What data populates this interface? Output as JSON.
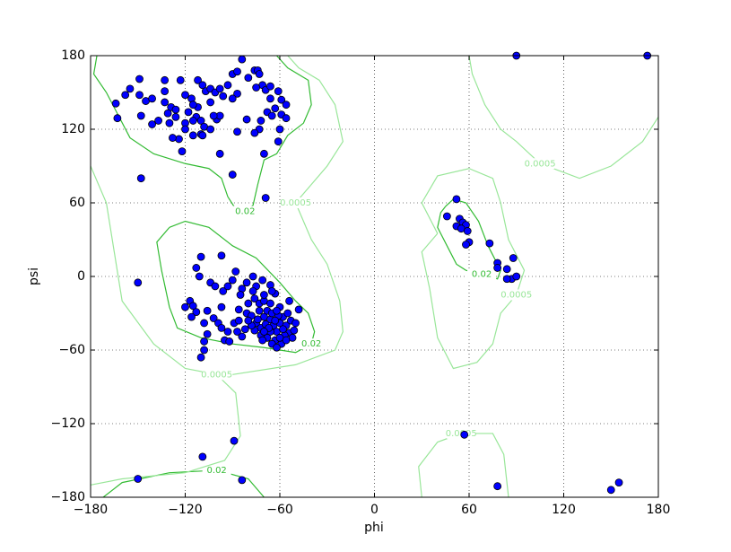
{
  "chart_data": {
    "type": "scatter",
    "x_label": "phi",
    "y_label": "psi",
    "xlim": [
      -180,
      180
    ],
    "ylim": [
      -180,
      180
    ],
    "xticks": [
      {
        "value": -180,
        "label": "−180"
      },
      {
        "value": -120,
        "label": "−120"
      },
      {
        "value": -60,
        "label": "−60"
      },
      0,
      60,
      120,
      180
    ],
    "yticks": [
      {
        "value": -180,
        "label": "−180"
      },
      {
        "value": -120,
        "label": "−120"
      },
      {
        "value": -60,
        "label": "−60"
      },
      0,
      60,
      120,
      180
    ],
    "grid": true,
    "contours": [
      {
        "level": 0.02,
        "color": "#33bb33",
        "paths": [
          [
            [
              -176,
              180
            ],
            [
              -178,
              165
            ],
            [
              -170,
              150
            ],
            [
              -155,
              113
            ],
            [
              -140,
              100
            ],
            [
              -120,
              92
            ],
            [
              -105,
              88
            ],
            [
              -97,
              80
            ],
            [
              -93,
              65
            ],
            [
              -88,
              55
            ],
            [
              -82,
              53
            ],
            [
              -77,
              58
            ],
            [
              -74,
              75
            ],
            [
              -70,
              95
            ],
            [
              -62,
              100
            ],
            [
              -55,
              115
            ],
            [
              -45,
              125
            ],
            [
              -40,
              140
            ],
            [
              -42,
              160
            ],
            [
              -55,
              170
            ],
            [
              -62,
              180
            ]
          ],
          [
            [
              -130,
              40
            ],
            [
              -120,
              45
            ],
            [
              -105,
              40
            ],
            [
              -90,
              25
            ],
            [
              -75,
              15
            ],
            [
              -60,
              -5
            ],
            [
              -50,
              -20
            ],
            [
              -42,
              -30
            ],
            [
              -38,
              -45
            ],
            [
              -40,
              -55
            ],
            [
              -50,
              -62
            ],
            [
              -70,
              -58
            ],
            [
              -90,
              -55
            ],
            [
              -110,
              -50
            ],
            [
              -125,
              -42
            ],
            [
              -130,
              -25
            ],
            [
              -135,
              5
            ],
            [
              -138,
              28
            ],
            [
              -130,
              40
            ]
          ],
          [
            [
              45,
              57
            ],
            [
              50,
              63
            ],
            [
              58,
              60
            ],
            [
              66,
              45
            ],
            [
              72,
              25
            ],
            [
              80,
              5
            ],
            [
              78,
              -2
            ],
            [
              68,
              2
            ],
            [
              58,
              5
            ],
            [
              52,
              10
            ],
            [
              48,
              20
            ],
            [
              40,
              40
            ],
            [
              42,
              52
            ],
            [
              45,
              57
            ]
          ],
          [
            [
              -172,
              -180
            ],
            [
              -160,
              -168
            ],
            [
              -130,
              -160
            ],
            [
              -100,
              -158
            ],
            [
              -80,
              -165
            ],
            [
              -70,
              -180
            ]
          ]
        ]
      },
      {
        "level": 0.0005,
        "color": "#99e699",
        "paths": [
          [
            [
              -180,
              90
            ],
            [
              -170,
              60
            ],
            [
              -165,
              20
            ],
            [
              -160,
              -20
            ],
            [
              -140,
              -55
            ],
            [
              -120,
              -75
            ],
            [
              -100,
              -80
            ],
            [
              -88,
              -95
            ],
            [
              -85,
              -130
            ],
            [
              -95,
              -150
            ],
            [
              -120,
              -160
            ],
            [
              -160,
              -165
            ],
            [
              -180,
              -170
            ]
          ],
          [
            [
              -55,
              180
            ],
            [
              -48,
              170
            ],
            [
              -35,
              160
            ],
            [
              -25,
              140
            ],
            [
              -20,
              110
            ],
            [
              -30,
              90
            ],
            [
              -40,
              75
            ],
            [
              -50,
              60
            ],
            [
              -40,
              30
            ],
            [
              -30,
              10
            ],
            [
              -22,
              -20
            ],
            [
              -20,
              -45
            ],
            [
              -25,
              -60
            ],
            [
              -50,
              -72
            ],
            [
              -90,
              -80
            ]
          ],
          [
            [
              60,
              180
            ],
            [
              62,
              165
            ],
            [
              70,
              140
            ],
            [
              80,
              120
            ],
            [
              90,
              110
            ],
            [
              105,
              92
            ],
            [
              130,
              80
            ],
            [
              150,
              90
            ],
            [
              170,
              110
            ],
            [
              180,
              130
            ]
          ],
          [
            [
              40,
              35
            ],
            [
              30,
              60
            ],
            [
              40,
              82
            ],
            [
              60,
              88
            ],
            [
              75,
              80
            ],
            [
              80,
              60
            ],
            [
              85,
              30
            ],
            [
              95,
              5
            ],
            [
              90,
              -15
            ],
            [
              80,
              -30
            ],
            [
              75,
              -55
            ],
            [
              65,
              -70
            ],
            [
              50,
              -75
            ],
            [
              40,
              -50
            ],
            [
              35,
              -10
            ],
            [
              30,
              20
            ],
            [
              40,
              35
            ]
          ],
          [
            [
              30,
              -180
            ],
            [
              28,
              -155
            ],
            [
              40,
              -135
            ],
            [
              55,
              -128
            ],
            [
              75,
              -128
            ],
            [
              82,
              -145
            ],
            [
              85,
              -180
            ]
          ]
        ]
      }
    ],
    "series": [
      {
        "color": "#0000ff",
        "x": [
          -155,
          -149,
          -149,
          -158,
          -164,
          -163,
          -148,
          -145,
          -141,
          -133,
          -133,
          -123,
          -129,
          -131,
          -126,
          -137,
          -141,
          -120,
          -116,
          -112,
          -109,
          -107,
          -104,
          -101,
          -104,
          -112,
          -118,
          -113,
          -110,
          -108,
          -110,
          -104,
          -100,
          -98,
          -96,
          -98,
          -93,
          -90,
          -87,
          -84,
          -80,
          -76,
          -74,
          -73,
          -71,
          -75,
          -69,
          -66,
          -61,
          -59,
          -56,
          -66,
          -63,
          -68,
          -65,
          -72,
          -81,
          -73,
          -76,
          -87,
          -59,
          -56,
          -60,
          -61,
          -70,
          -90,
          -98,
          -122,
          -124,
          -128,
          -148,
          -133,
          -115,
          -102,
          -120,
          -109,
          -130,
          -87,
          -90,
          -69,
          -115,
          -126,
          -115,
          -120,
          -110,
          -97,
          -113,
          -111,
          -104,
          -88,
          -90,
          -96,
          -93,
          -77,
          -81,
          -84,
          -75,
          -71,
          -66,
          -63,
          -117,
          -115,
          -113,
          -120,
          -116,
          -106,
          -102,
          -108,
          -99,
          -97,
          -89,
          -93,
          -95,
          -84,
          -86,
          -81,
          -86,
          -80,
          -76,
          -73,
          -70,
          -78,
          -75,
          -72,
          -70,
          -68,
          -66,
          -64,
          -62,
          -60,
          -58,
          -56,
          -54,
          -52,
          -55,
          -60,
          -66,
          -68,
          -63,
          -59,
          -57,
          -72,
          -76,
          -74,
          -69,
          -65,
          -61,
          -63,
          -67,
          -53,
          -48,
          -51,
          -65,
          -70,
          -78,
          -82,
          -60,
          -58,
          -56,
          -62,
          -66,
          -70,
          -150,
          -108,
          -108,
          -110,
          -92,
          -106,
          -109,
          -89,
          -150,
          -84,
          -101,
          -85,
          -77,
          -65,
          -73,
          -80,
          -87,
          -97,
          -54,
          -50,
          -62,
          -71,
          52,
          46,
          54,
          56,
          58,
          52,
          55,
          59,
          60,
          58,
          73,
          78,
          78,
          84,
          87,
          84,
          90,
          88,
          57,
          78,
          90,
          173,
          150,
          155
        ],
        "y": [
          153,
          161,
          148,
          148,
          141,
          129,
          131,
          143,
          145,
          160,
          151,
          160,
          138,
          133,
          130,
          127,
          124,
          148,
          145,
          160,
          156,
          151,
          153,
          150,
          142,
          138,
          134,
          130,
          127,
          122,
          116,
          120,
          128,
          131,
          147,
          153,
          156,
          165,
          167,
          177,
          162,
          168,
          168,
          165,
          156,
          154,
          152,
          155,
          151,
          144,
          140,
          145,
          137,
          134,
          131,
          127,
          128,
          120,
          117,
          118,
          132,
          129,
          120,
          110,
          100,
          83,
          100,
          102,
          112,
          113,
          80,
          142,
          127,
          131,
          125,
          115,
          125,
          149,
          145,
          64,
          115,
          136,
          140,
          120,
          16,
          17,
          7,
          0,
          -5,
          4,
          -3,
          -12,
          -8,
          0,
          -5,
          -10,
          -8,
          -3,
          -7,
          -14,
          -20,
          -24,
          -29,
          -25,
          -33,
          -28,
          -34,
          -38,
          -38,
          -42,
          -38,
          -45,
          -52,
          -49,
          -36,
          -30,
          -27,
          -22,
          -18,
          -22,
          -20,
          -32,
          -38,
          -42,
          -33,
          -28,
          -35,
          -40,
          -45,
          -38,
          -33,
          -40,
          -46,
          -50,
          -30,
          -25,
          -45,
          -50,
          -52,
          -55,
          -48,
          -48,
          -44,
          -35,
          -39,
          -30,
          -32,
          -36,
          -42,
          -36,
          -27,
          -44,
          -55,
          -45,
          -40,
          -43,
          -50,
          -43,
          -52,
          -28,
          -22,
          -15,
          -5,
          -53,
          -60,
          -66,
          -53,
          -47,
          -147,
          -134,
          -165,
          -166,
          -8,
          -15,
          -12,
          -12,
          -28,
          -36,
          -45,
          -25,
          -20,
          -38,
          -58,
          -52,
          63,
          49,
          47,
          44,
          42,
          41,
          39,
          37,
          28,
          26,
          27,
          11,
          7,
          6,
          -2,
          -2,
          0,
          15,
          -129,
          -171,
          180,
          180,
          -174,
          -168
        ]
      }
    ]
  }
}
